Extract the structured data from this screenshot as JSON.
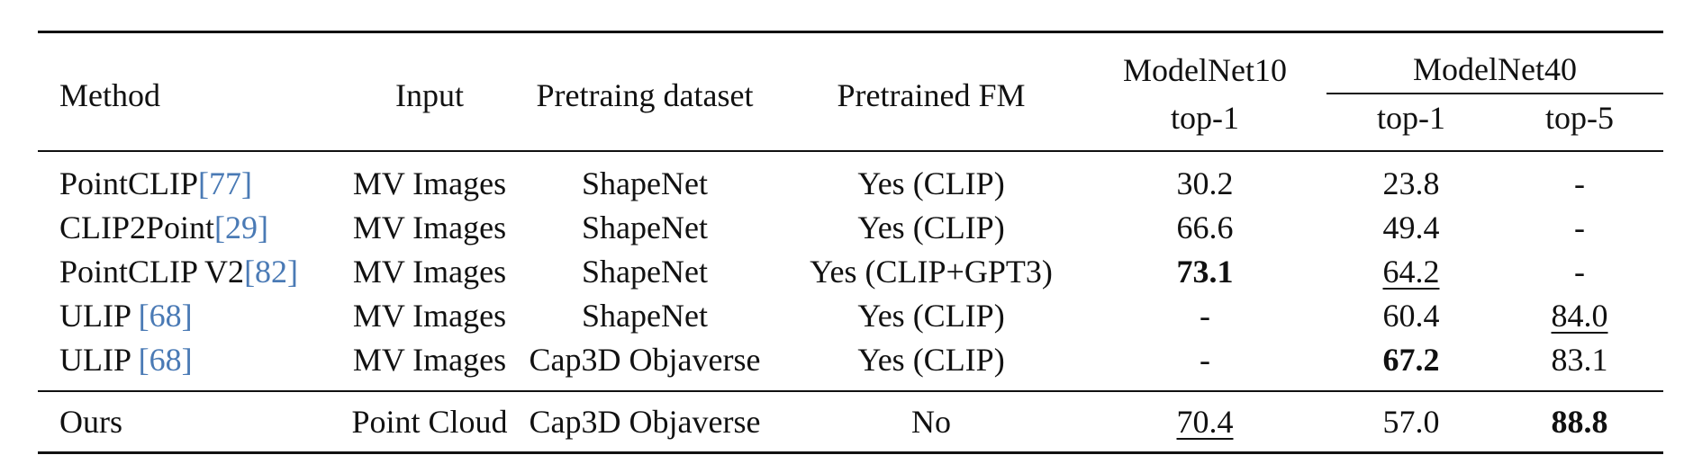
{
  "table": {
    "headers": {
      "method": "Method",
      "input": "Input",
      "dataset": "Pretraing dataset",
      "fm": "Pretrained FM",
      "mn10": "ModelNet10",
      "mn10_top1": "top-1",
      "mn40": "ModelNet40",
      "mn40_top1": "top-1",
      "mn40_top5": "top-5"
    },
    "rows": [
      {
        "method": "PointCLIP",
        "cite": "[77]",
        "input": "MV Images",
        "dataset": "ShapeNet",
        "fm": "Yes (CLIP)",
        "mn10": "30.2",
        "mn40_top1": "23.8",
        "mn40_top5": "-"
      },
      {
        "method": "CLIP2Point",
        "cite": "[29]",
        "input": "MV Images",
        "dataset": "ShapeNet",
        "fm": "Yes (CLIP)",
        "mn10": "66.6",
        "mn40_top1": "49.4",
        "mn40_top5": "-"
      },
      {
        "method": "PointCLIP V2",
        "cite": "[82]",
        "input": "MV Images",
        "dataset": "ShapeNet",
        "fm": "Yes (CLIP+GPT3)",
        "mn10": "73.1",
        "mn40_top1": "64.2",
        "mn40_top5": "-"
      },
      {
        "method": "ULIP ",
        "cite": "[68]",
        "input": "MV Images",
        "dataset": "ShapeNet",
        "fm": "Yes (CLIP)",
        "mn10": "-",
        "mn40_top1": "60.4",
        "mn40_top5": "84.0"
      },
      {
        "method": "ULIP ",
        "cite": "[68]",
        "input": "MV Images",
        "dataset": "Cap3D Objaverse",
        "fm": "Yes (CLIP)",
        "mn10": "-",
        "mn40_top1": "67.2",
        "mn40_top5": "83.1"
      },
      {
        "method": "Ours",
        "cite": "",
        "input": "Point Cloud",
        "dataset": "Cap3D Objaverse",
        "fm": "No",
        "mn10": "70.4",
        "mn40_top1": "57.0",
        "mn40_top5": "88.8"
      }
    ]
  }
}
